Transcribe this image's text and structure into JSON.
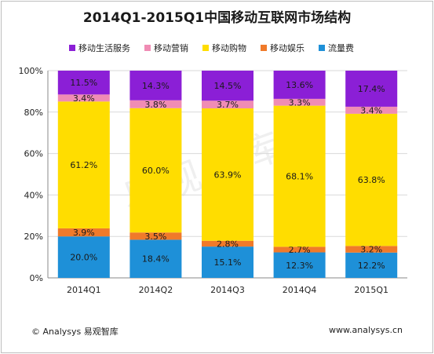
{
  "chart_data": {
    "type": "bar",
    "stacked": true,
    "normalized": true,
    "title": "2014Q1-2015Q1中国移动互联网市场结构",
    "categories": [
      "2014Q1",
      "2014Q2",
      "2014Q3",
      "2014Q4",
      "2015Q1"
    ],
    "series": [
      {
        "name": "流量费",
        "color": "#1e90d8",
        "values": [
          20.0,
          18.4,
          15.1,
          12.3,
          12.2
        ],
        "labels": [
          "20.0%",
          "18.4%",
          "15.1%",
          "12.3%",
          "12.2%"
        ]
      },
      {
        "name": "移动娱乐",
        "color": "#f07a2a",
        "values": [
          3.9,
          3.5,
          2.8,
          2.7,
          3.2
        ],
        "labels": [
          "3.9%",
          "3.5%",
          "2.8%",
          "2.7%",
          "3.2%"
        ]
      },
      {
        "name": "移动购物",
        "color": "#ffdd00",
        "values": [
          61.2,
          60.0,
          63.9,
          68.1,
          63.8
        ],
        "labels": [
          "61.2%",
          "60.0%",
          "63.9%",
          "68.1%",
          "63.8%"
        ]
      },
      {
        "name": "移动营销",
        "color": "#f08cb4",
        "values": [
          3.4,
          3.8,
          3.7,
          3.3,
          3.4
        ],
        "labels": [
          "3.4%",
          "3.8%",
          "3.7%",
          "3.3%",
          "3.4%"
        ]
      },
      {
        "name": "移动生活服务",
        "color": "#8b1fd6",
        "values": [
          11.5,
          14.3,
          14.5,
          13.6,
          17.4
        ],
        "labels": [
          "11.5%",
          "14.3%",
          "14.5%",
          "13.6%",
          "17.4%"
        ]
      }
    ],
    "legend_order": [
      "移动生活服务",
      "移动营销",
      "移动购物",
      "移动娱乐",
      "流量费"
    ],
    "yticks": [
      "0%",
      "20%",
      "40%",
      "60%",
      "80%",
      "100%"
    ],
    "ylim": [
      0,
      100
    ],
    "legend_position": "top"
  },
  "footer": {
    "source": "© Analysys 易观智库",
    "url": "www.analysys.cn"
  },
  "watermark": "易观智库"
}
